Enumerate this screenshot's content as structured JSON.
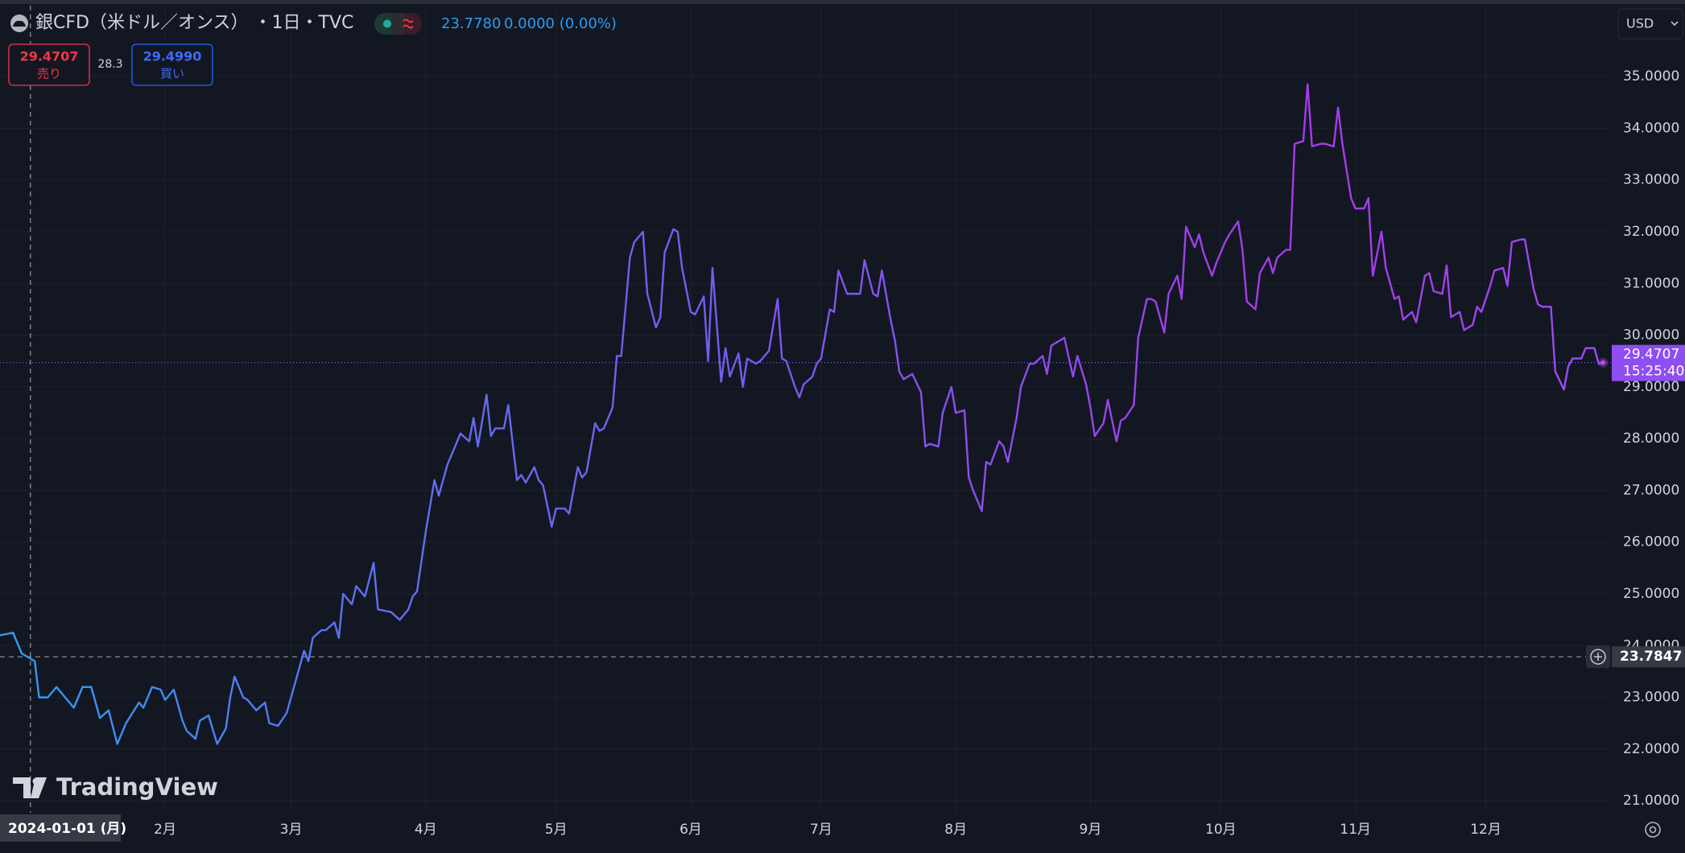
{
  "chart_data": {
    "type": "line",
    "title": "銀CFD（米ドル／オンス） ・1日・TVC",
    "quote": {
      "price": "23.7780",
      "change": "0.0000 (0.00%)"
    },
    "sell": {
      "price": "29.4707",
      "label": "売り"
    },
    "spread": "28.3",
    "buy": {
      "price": "29.4990",
      "label": "買い"
    },
    "currency": "USD",
    "brand": "TradingView",
    "colors": [
      "#2d9ff2",
      "#5a74f2",
      "#7160ef",
      "#8a4fee",
      "#a63ae9",
      "#9a4cf0"
    ],
    "x": [
      "2023-12-25",
      "2023-12-28",
      "2023-12-30",
      "2024-01-02",
      "2024-01-03",
      "2024-01-05",
      "2024-01-07",
      "2024-01-09",
      "2024-01-11",
      "2024-01-13",
      "2024-01-15",
      "2024-01-17",
      "2024-01-19",
      "2024-01-21",
      "2024-01-23",
      "2024-01-26",
      "2024-01-27",
      "2024-01-29",
      "2024-01-31",
      "2024-02-01",
      "2024-02-03",
      "2024-02-05",
      "2024-02-06",
      "2024-02-08",
      "2024-02-09",
      "2024-02-11",
      "2024-02-13",
      "2024-02-15",
      "2024-02-16",
      "2024-02-17",
      "2024-02-19",
      "2024-02-20",
      "2024-02-22",
      "2024-02-24",
      "2024-02-25",
      "2024-02-27",
      "2024-02-29",
      "2024-03-02",
      "2024-03-04",
      "2024-03-05",
      "2024-03-06",
      "2024-03-08",
      "2024-03-09",
      "2024-03-11",
      "2024-03-12",
      "2024-03-13",
      "2024-03-15",
      "2024-03-16",
      "2024-03-18",
      "2024-03-20",
      "2024-03-21",
      "2024-03-24",
      "2024-03-26",
      "2024-03-28",
      "2024-03-29",
      "2024-03-30",
      "2024-04-01",
      "2024-04-03",
      "2024-04-04",
      "2024-04-06",
      "2024-04-08",
      "2024-04-09",
      "2024-04-11",
      "2024-04-12",
      "2024-04-13",
      "2024-04-15",
      "2024-04-16",
      "2024-04-17",
      "2024-04-19",
      "2024-04-20",
      "2024-04-22",
      "2024-04-23",
      "2024-04-24",
      "2024-04-26",
      "2024-04-27",
      "2024-04-28",
      "2024-04-30",
      "2024-05-01",
      "2024-05-03",
      "2024-05-04",
      "2024-05-06",
      "2024-05-07",
      "2024-05-08",
      "2024-05-10",
      "2024-05-11",
      "2024-05-12",
      "2024-05-14",
      "2024-05-15",
      "2024-05-16",
      "2024-05-18",
      "2024-05-19",
      "2024-05-21",
      "2024-05-22",
      "2024-05-24",
      "2024-05-25",
      "2024-05-26",
      "2024-05-28",
      "2024-05-29",
      "2024-05-30",
      "2024-06-01",
      "2024-06-02",
      "2024-06-04",
      "2024-06-05",
      "2024-06-06",
      "2024-06-08",
      "2024-06-09",
      "2024-06-10",
      "2024-06-12",
      "2024-06-13",
      "2024-06-14",
      "2024-06-16",
      "2024-06-17",
      "2024-06-19",
      "2024-06-21",
      "2024-06-22",
      "2024-06-23",
      "2024-06-25",
      "2024-06-26",
      "2024-06-27",
      "2024-06-29",
      "2024-06-30",
      "2024-07-01",
      "2024-07-03",
      "2024-07-04",
      "2024-07-05",
      "2024-07-07",
      "2024-07-08",
      "2024-07-10",
      "2024-07-11",
      "2024-07-13",
      "2024-07-14",
      "2024-07-15",
      "2024-07-17",
      "2024-07-18",
      "2024-07-19",
      "2024-07-20",
      "2024-07-22",
      "2024-07-24",
      "2024-07-25",
      "2024-07-26",
      "2024-07-28",
      "2024-07-29",
      "2024-07-31",
      "2024-08-01",
      "2024-08-03",
      "2024-08-04",
      "2024-08-05",
      "2024-08-07",
      "2024-08-08",
      "2024-08-09",
      "2024-08-11",
      "2024-08-12",
      "2024-08-13",
      "2024-08-15",
      "2024-08-16",
      "2024-08-18",
      "2024-08-19",
      "2024-08-21",
      "2024-08-22",
      "2024-08-23",
      "2024-08-25",
      "2024-08-26",
      "2024-08-28",
      "2024-08-29",
      "2024-08-31",
      "2024-09-01",
      "2024-09-02",
      "2024-09-04",
      "2024-09-05",
      "2024-09-07",
      "2024-09-08",
      "2024-09-09",
      "2024-09-11",
      "2024-09-12",
      "2024-09-14",
      "2024-09-15",
      "2024-09-16",
      "2024-09-18",
      "2024-09-19",
      "2024-09-21",
      "2024-09-22",
      "2024-09-23",
      "2024-09-25",
      "2024-09-26",
      "2024-09-27",
      "2024-09-29",
      "2024-09-30",
      "2024-10-02",
      "2024-10-03",
      "2024-10-05",
      "2024-10-06",
      "2024-10-07",
      "2024-10-09",
      "2024-10-10",
      "2024-10-12",
      "2024-10-13",
      "2024-10-14",
      "2024-10-16",
      "2024-10-17",
      "2024-10-18",
      "2024-10-20",
      "2024-10-21",
      "2024-10-22",
      "2024-10-24",
      "2024-10-25",
      "2024-10-27",
      "2024-10-28",
      "2024-10-29",
      "2024-10-31",
      "2024-11-01",
      "2024-11-03",
      "2024-11-04",
      "2024-11-05",
      "2024-11-07",
      "2024-11-08",
      "2024-11-10",
      "2024-11-11",
      "2024-11-12",
      "2024-11-14",
      "2024-11-15",
      "2024-11-17",
      "2024-11-18",
      "2024-11-19",
      "2024-11-21",
      "2024-11-22",
      "2024-11-23",
      "2024-11-25",
      "2024-11-26",
      "2024-11-28",
      "2024-11-29",
      "2024-11-30",
      "2024-12-02",
      "2024-12-03",
      "2024-12-05",
      "2024-12-06",
      "2024-12-07",
      "2024-12-09",
      "2024-12-10",
      "2024-12-12",
      "2024-12-13",
      "2024-12-14",
      "2024-12-16",
      "2024-12-17",
      "2024-12-19",
      "2024-12-20",
      "2024-12-21",
      "2024-12-23",
      "2024-12-24",
      "2024-12-26",
      "2024-12-27",
      "2024-12-28"
    ],
    "values": [
      24.2,
      24.25,
      23.85,
      23.7,
      23.0,
      23.0,
      23.2,
      23.0,
      22.8,
      23.2,
      23.2,
      22.6,
      22.75,
      22.1,
      22.5,
      22.9,
      22.8,
      23.2,
      23.15,
      22.95,
      23.15,
      22.55,
      22.35,
      22.2,
      22.55,
      22.65,
      22.1,
      22.4,
      23.0,
      23.4,
      23.0,
      22.95,
      22.75,
      22.9,
      22.5,
      22.45,
      22.7,
      23.3,
      23.9,
      23.7,
      24.15,
      24.3,
      24.3,
      24.45,
      24.15,
      25.0,
      24.8,
      25.15,
      24.95,
      25.6,
      24.7,
      24.65,
      24.5,
      24.7,
      24.95,
      25.05,
      26.2,
      27.2,
      26.9,
      27.5,
      27.9,
      28.1,
      27.95,
      28.4,
      27.85,
      28.85,
      28.05,
      28.2,
      28.2,
      28.65,
      27.2,
      27.3,
      27.15,
      27.45,
      27.2,
      27.1,
      26.3,
      26.65,
      26.65,
      26.55,
      27.45,
      27.25,
      27.35,
      28.3,
      28.15,
      28.2,
      28.6,
      29.6,
      29.6,
      31.5,
      31.8,
      32.0,
      30.8,
      30.15,
      30.35,
      31.6,
      32.05,
      32.0,
      31.3,
      30.45,
      30.4,
      30.75,
      29.5,
      31.3,
      29.1,
      29.75,
      29.2,
      29.65,
      29.0,
      29.55,
      29.45,
      29.5,
      29.7,
      30.7,
      29.55,
      29.5,
      29.0,
      28.8,
      29.05,
      29.2,
      29.45,
      29.55,
      30.5,
      30.45,
      31.25,
      30.8,
      30.8,
      30.8,
      31.45,
      30.8,
      30.75,
      31.25,
      30.3,
      29.9,
      29.3,
      29.15,
      29.25,
      28.9,
      27.85,
      27.9,
      27.85,
      28.5,
      29.0,
      28.5,
      28.55,
      27.25,
      27.0,
      26.6,
      27.55,
      27.5,
      27.95,
      27.85,
      27.55,
      28.4,
      29.0,
      29.45,
      29.45,
      29.6,
      29.25,
      29.8,
      29.9,
      29.95,
      29.2,
      29.6,
      29.05,
      28.6,
      28.05,
      28.3,
      28.75,
      27.95,
      28.35,
      28.4,
      28.65,
      29.95,
      30.7,
      30.7,
      30.65,
      30.05,
      30.8,
      31.15,
      30.7,
      32.1,
      31.7,
      31.95,
      31.6,
      31.15,
      31.4,
      31.8,
      31.95,
      32.2,
      31.65,
      30.65,
      30.5,
      31.2,
      31.5,
      31.2,
      31.5,
      31.65,
      31.65,
      33.7,
      33.75,
      34.85,
      33.65,
      33.7,
      33.7,
      33.65,
      34.4,
      33.7,
      32.65,
      32.45,
      32.45,
      32.65,
      31.15,
      32.0,
      31.3,
      30.7,
      30.75,
      30.3,
      30.45,
      30.25,
      31.15,
      31.2,
      30.85,
      30.8,
      31.35,
      30.35,
      30.45,
      30.1,
      30.2,
      30.55,
      30.45,
      30.95,
      31.25,
      31.3,
      30.95,
      31.8,
      31.85,
      31.85,
      30.9,
      30.6,
      30.55,
      30.55,
      29.3,
      28.95,
      29.4,
      29.55,
      29.55,
      29.75,
      29.75,
      29.45,
      29.4707
    ],
    "xlim": [
      "2023-12-25",
      "2024-12-30"
    ],
    "xticks": [
      {
        "value": "2024-02-01",
        "label": "2月"
      },
      {
        "value": "2024-03-01",
        "label": "3月"
      },
      {
        "value": "2024-04-01",
        "label": "4月"
      },
      {
        "value": "2024-05-01",
        "label": "5月"
      },
      {
        "value": "2024-06-01",
        "label": "6月"
      },
      {
        "value": "2024-07-01",
        "label": "7月"
      },
      {
        "value": "2024-08-01",
        "label": "8月"
      },
      {
        "value": "2024-09-01",
        "label": "9月"
      },
      {
        "value": "2024-10-01",
        "label": "10月"
      },
      {
        "value": "2024-11-01",
        "label": "11月"
      },
      {
        "value": "2024-12-01",
        "label": "12月"
      }
    ],
    "ylim": [
      20.77,
      36.37
    ],
    "yticks": [
      {
        "value": 21,
        "label": "21.0000"
      },
      {
        "value": 22,
        "label": "22.0000"
      },
      {
        "value": 23,
        "label": "23.0000"
      },
      {
        "value": 24,
        "label": "24.0000"
      },
      {
        "value": 25,
        "label": "25.0000"
      },
      {
        "value": 26,
        "label": "26.0000"
      },
      {
        "value": 27,
        "label": "27.0000"
      },
      {
        "value": 28,
        "label": "28.0000"
      },
      {
        "value": 29,
        "label": "29.0000"
      },
      {
        "value": 30,
        "label": "30.0000"
      },
      {
        "value": 31,
        "label": "31.0000"
      },
      {
        "value": 32,
        "label": "32.0000"
      },
      {
        "value": 33,
        "label": "33.0000"
      },
      {
        "value": 34,
        "label": "34.0000"
      },
      {
        "value": 35,
        "label": "35.0000"
      }
    ],
    "grid": true,
    "last_price": 29.4707,
    "countdown": "15:25:40",
    "crosshair": {
      "x_label": "2024-01-01 (月)",
      "y": 23.7847
    }
  }
}
